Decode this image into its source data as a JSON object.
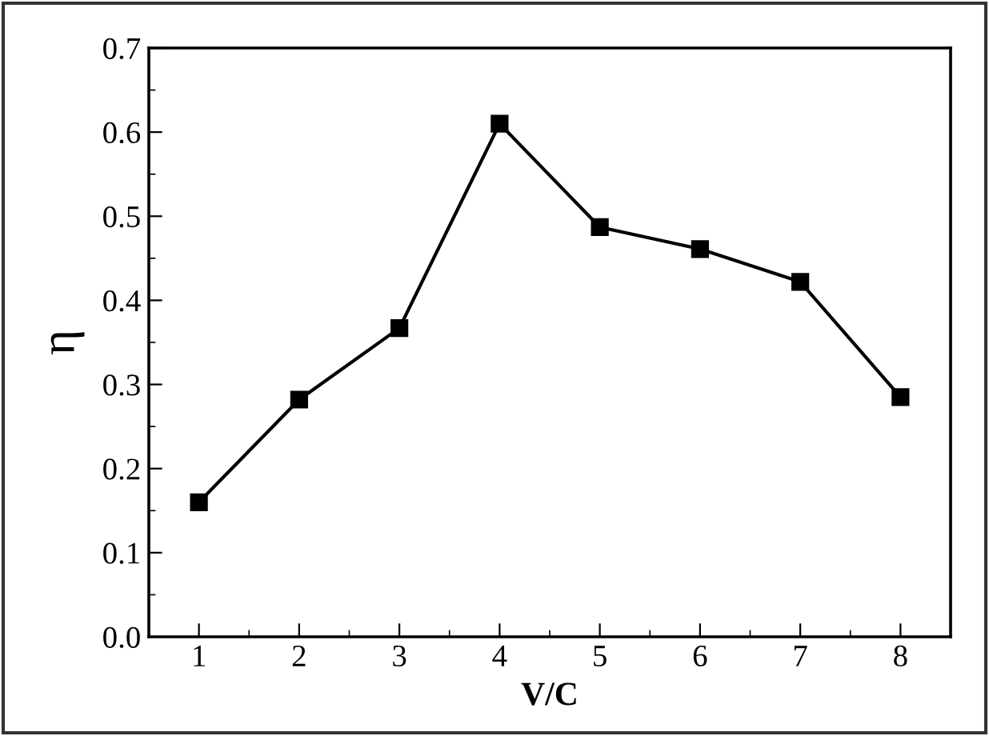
{
  "chart_data": {
    "type": "line",
    "xlabel": "V/C",
    "ylabel": "η",
    "x": [
      1,
      2,
      3,
      4,
      5,
      6,
      7,
      8
    ],
    "series": [
      {
        "color": "#000000",
        "values": [
          0.16,
          0.282,
          0.367,
          0.61,
          0.487,
          0.461,
          0.422,
          0.285
        ]
      }
    ],
    "xlim": [
      0.5,
      8.5
    ],
    "xticks": [
      1,
      2,
      3,
      4,
      5,
      6,
      7,
      8
    ],
    "ylim": [
      0.0,
      0.7
    ],
    "yticks": [
      {
        "value": 0.0,
        "label": "0.0"
      },
      0.1,
      0.2,
      0.3,
      0.4,
      0.5,
      0.6,
      0.7
    ],
    "marker": "square",
    "line_style": "solid",
    "grid": false,
    "legend": false
  }
}
